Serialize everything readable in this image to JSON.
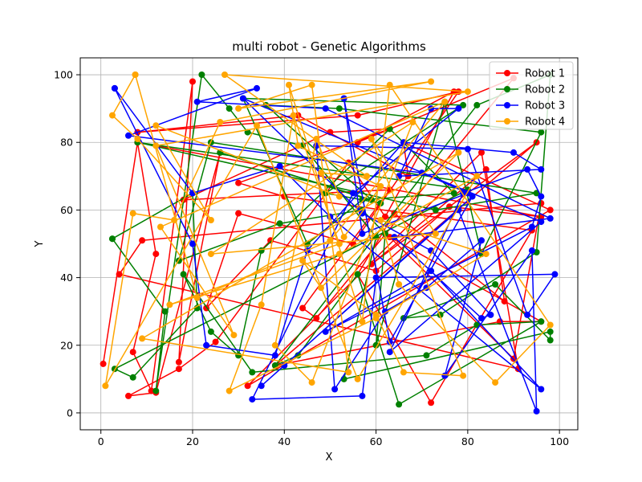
{
  "chart_data": {
    "type": "line",
    "title": "multi robot - Genetic Algorithms",
    "xlabel": "X",
    "ylabel": "Y",
    "xlim": [
      -4.5,
      104
    ],
    "ylim": [
      -5,
      105
    ],
    "xticks": [
      0,
      20,
      40,
      60,
      80,
      100
    ],
    "yticks": [
      0,
      20,
      40,
      60,
      80,
      100
    ],
    "grid": true,
    "legend": "top-right",
    "series": [
      {
        "name": "Robot 1",
        "color": "#ff0000",
        "points": [
          [
            0.5,
            14.5
          ],
          [
            8,
            80
          ],
          [
            12,
            47
          ],
          [
            7,
            18
          ],
          [
            11,
            6.5
          ],
          [
            20,
            98
          ],
          [
            17,
            15
          ],
          [
            26,
            77
          ],
          [
            12,
            6
          ],
          [
            6,
            5
          ],
          [
            17,
            13
          ],
          [
            25,
            21
          ],
          [
            54,
            74
          ],
          [
            62,
            58
          ],
          [
            77,
            95
          ],
          [
            56,
            80
          ],
          [
            90,
            99
          ],
          [
            47,
            28
          ],
          [
            44,
            31
          ],
          [
            63,
            66
          ],
          [
            18,
            63
          ],
          [
            50,
            83
          ],
          [
            63,
            84
          ],
          [
            30,
            68
          ],
          [
            40,
            64
          ],
          [
            94,
            54
          ],
          [
            72,
            3
          ],
          [
            56,
            41
          ],
          [
            64,
            59
          ],
          [
            88,
            33
          ],
          [
            84,
            72
          ],
          [
            59,
            44
          ],
          [
            95,
            80
          ],
          [
            38,
            14
          ],
          [
            87,
            27
          ],
          [
            96,
            27
          ],
          [
            63,
            52
          ],
          [
            90,
            16
          ],
          [
            96,
            62
          ],
          [
            9,
            51
          ],
          [
            4,
            41
          ],
          [
            91,
            13
          ],
          [
            83,
            77
          ],
          [
            32,
            8
          ],
          [
            98,
            60
          ],
          [
            66,
            80
          ],
          [
            67,
            70
          ],
          [
            43,
            88
          ],
          [
            8,
            83
          ],
          [
            56,
            88
          ],
          [
            78,
            95
          ],
          [
            55,
            50
          ],
          [
            30,
            59
          ],
          [
            23,
            31
          ],
          [
            37,
            51
          ],
          [
            60,
            42
          ],
          [
            76,
            61
          ],
          [
            96,
            58
          ],
          [
            8,
            80
          ]
        ]
      },
      {
        "name": "Robot 2",
        "color": "#008000",
        "points": [
          [
            2.5,
            51.5
          ],
          [
            14,
            30
          ],
          [
            12,
            6.5
          ],
          [
            22,
            100
          ],
          [
            28,
            90
          ],
          [
            32,
            83
          ],
          [
            44,
            79
          ],
          [
            60,
            52
          ],
          [
            53,
            10
          ],
          [
            98,
            24
          ],
          [
            98,
            21.5
          ],
          [
            86,
            38
          ],
          [
            66,
            28
          ],
          [
            74,
            29
          ],
          [
            95,
            47.5
          ],
          [
            98,
            100
          ],
          [
            82,
            91
          ],
          [
            38,
            14
          ],
          [
            43,
            17
          ],
          [
            56,
            41
          ],
          [
            65,
            2.5
          ],
          [
            96,
            27
          ],
          [
            82,
            26
          ],
          [
            71,
            17
          ],
          [
            33,
            12
          ],
          [
            18,
            41
          ],
          [
            24,
            24
          ],
          [
            30,
            17
          ],
          [
            35,
            48
          ],
          [
            63,
            84
          ],
          [
            77,
            65
          ],
          [
            57,
            63
          ],
          [
            45,
            50
          ],
          [
            31,
            93
          ],
          [
            79,
            91
          ],
          [
            49,
            65
          ],
          [
            61,
            62
          ],
          [
            26,
            77
          ],
          [
            59,
            63
          ],
          [
            36,
            91
          ],
          [
            52,
            90
          ],
          [
            96,
            83
          ],
          [
            83,
            47
          ],
          [
            75,
            92
          ],
          [
            60,
            20
          ],
          [
            62,
            53
          ],
          [
            57,
            60
          ],
          [
            39,
            56
          ],
          [
            17,
            45
          ],
          [
            24,
            80
          ],
          [
            95,
            65
          ],
          [
            73,
            60
          ],
          [
            8,
            80
          ],
          [
            80,
            66
          ],
          [
            3,
            13
          ],
          [
            7,
            10.5
          ],
          [
            21,
            31
          ],
          [
            20,
            65
          ],
          [
            2.5,
            51.5
          ]
        ]
      },
      {
        "name": "Robot 3",
        "color": "#0000ff",
        "points": [
          [
            3,
            96
          ],
          [
            20,
            50
          ],
          [
            23,
            20
          ],
          [
            38,
            17
          ],
          [
            45,
            48
          ],
          [
            66,
            80
          ],
          [
            90,
            77
          ],
          [
            96,
            72
          ],
          [
            65,
            70
          ],
          [
            72,
            90
          ],
          [
            78,
            90
          ],
          [
            55,
            65
          ],
          [
            33,
            4
          ],
          [
            57,
            5
          ],
          [
            60,
            40
          ],
          [
            99,
            41
          ],
          [
            93,
            29
          ],
          [
            80,
            78
          ],
          [
            47,
            79
          ],
          [
            51,
            7
          ],
          [
            62,
            30
          ],
          [
            71,
            37
          ],
          [
            83,
            51
          ],
          [
            75,
            11
          ],
          [
            94,
            48
          ],
          [
            95,
            0.5
          ],
          [
            78,
            60
          ],
          [
            35,
            8
          ],
          [
            40,
            14
          ],
          [
            81,
            64
          ],
          [
            63,
            21
          ],
          [
            53,
            93
          ],
          [
            57,
            53
          ],
          [
            80,
            65
          ],
          [
            70,
            71
          ],
          [
            6,
            82
          ],
          [
            34,
            96
          ],
          [
            21,
            92
          ],
          [
            49,
            90
          ],
          [
            98,
            57.5
          ],
          [
            64,
            52
          ],
          [
            83,
            28
          ],
          [
            85,
            29
          ],
          [
            72,
            48
          ],
          [
            57,
            59
          ],
          [
            31,
            93
          ],
          [
            96,
            56.5
          ],
          [
            63,
            18
          ],
          [
            79,
            65
          ],
          [
            93,
            72
          ],
          [
            96,
            64
          ],
          [
            94,
            55
          ],
          [
            49,
            24
          ],
          [
            72,
            42
          ],
          [
            96,
            7
          ],
          [
            50,
            58
          ],
          [
            39,
            73
          ],
          [
            20,
            65
          ],
          [
            3,
            96
          ]
        ]
      },
      {
        "name": "Robot 4",
        "color": "#ffa500",
        "points": [
          [
            7.5,
            100
          ],
          [
            21,
            34
          ],
          [
            50,
            51
          ],
          [
            75,
            92
          ],
          [
            13,
            55
          ],
          [
            29,
            23
          ],
          [
            12,
            79
          ],
          [
            80,
            95
          ],
          [
            27,
            100
          ],
          [
            58,
            70
          ],
          [
            48,
            71
          ],
          [
            53,
            52
          ],
          [
            61,
            67
          ],
          [
            43,
            79
          ],
          [
            41,
            97
          ],
          [
            57,
            27
          ],
          [
            63,
            97
          ],
          [
            98,
            26
          ],
          [
            86,
            9
          ],
          [
            65,
            38
          ],
          [
            61,
            57
          ],
          [
            84,
            47
          ],
          [
            60,
            28
          ],
          [
            28,
            6.5
          ],
          [
            35,
            32
          ],
          [
            42,
            88
          ],
          [
            52,
            50
          ],
          [
            15,
            32
          ],
          [
            52,
            47
          ],
          [
            82,
            70
          ],
          [
            56,
            10
          ],
          [
            34,
            85
          ],
          [
            1,
            8
          ],
          [
            7,
            59
          ],
          [
            16,
            57
          ],
          [
            26,
            86
          ],
          [
            72,
            98
          ],
          [
            30,
            90
          ],
          [
            46,
            97
          ],
          [
            54,
            12
          ],
          [
            9,
            22
          ],
          [
            78,
            77
          ],
          [
            48,
            37
          ],
          [
            44,
            45
          ],
          [
            60,
            29
          ],
          [
            66,
            12
          ],
          [
            79,
            11
          ],
          [
            59,
            81
          ],
          [
            73,
            53
          ],
          [
            24,
            47
          ],
          [
            68,
            86
          ],
          [
            46,
            9
          ],
          [
            38,
            20
          ],
          [
            47,
            81
          ],
          [
            52,
            64
          ],
          [
            12,
            85
          ],
          [
            24,
            57
          ],
          [
            8,
            81
          ],
          [
            2.5,
            88
          ],
          [
            7.5,
            100
          ]
        ]
      }
    ]
  }
}
